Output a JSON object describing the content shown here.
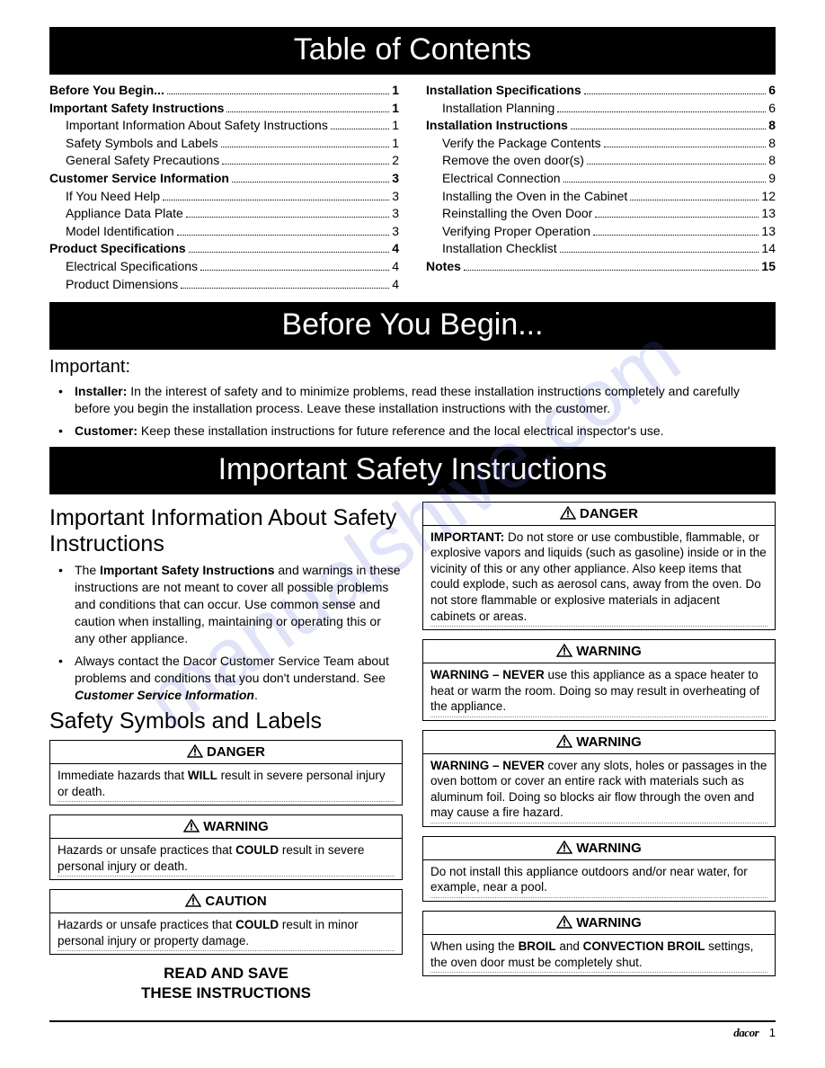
{
  "banners": {
    "toc": "Table of Contents",
    "before": "Before You Begin...",
    "safety": "Important Safety Instructions"
  },
  "toc_left": [
    {
      "label": "Before You Begin... ",
      "page": "1",
      "bold": true,
      "indent": 0
    },
    {
      "label": "Important Safety Instructions ",
      "page": "1",
      "bold": true,
      "indent": 0
    },
    {
      "label": "Important Information About Safety Instructions",
      "page": "1",
      "bold": false,
      "indent": 1
    },
    {
      "label": "Safety Symbols and Labels ",
      "page": "1",
      "bold": false,
      "indent": 1
    },
    {
      "label": "General Safety Precautions ",
      "page": "2",
      "bold": false,
      "indent": 1
    },
    {
      "label": "Customer Service Information ",
      "page": "3",
      "bold": true,
      "indent": 0
    },
    {
      "label": "If You Need Help",
      "page": "3",
      "bold": false,
      "indent": 1
    },
    {
      "label": "Appliance Data Plate ",
      "page": "3",
      "bold": false,
      "indent": 1
    },
    {
      "label": "Model Identification ",
      "page": "3",
      "bold": false,
      "indent": 1
    },
    {
      "label": "Product Specifications ",
      "page": "4",
      "bold": true,
      "indent": 0
    },
    {
      "label": "Electrical Specifications ",
      "page": "4",
      "bold": false,
      "indent": 1
    },
    {
      "label": "Product Dimensions ",
      "page": "4",
      "bold": false,
      "indent": 1
    }
  ],
  "toc_right": [
    {
      "label": "Installation Specifications ",
      "page": "6",
      "bold": true,
      "indent": 0
    },
    {
      "label": "Installation Planning ",
      "page": "6",
      "bold": false,
      "indent": 1
    },
    {
      "label": "Installation Instructions ",
      "page": "8",
      "bold": true,
      "indent": 0
    },
    {
      "label": "Verify the Package Contents",
      "page": "8",
      "bold": false,
      "indent": 1
    },
    {
      "label": "Remove the oven door(s) ",
      "page": "8",
      "bold": false,
      "indent": 1
    },
    {
      "label": "Electrical Connection ",
      "page": "9",
      "bold": false,
      "indent": 1
    },
    {
      "label": "Installing the Oven in the Cabinet",
      "page": "12",
      "bold": false,
      "indent": 1
    },
    {
      "label": "Reinstalling the Oven Door ",
      "page": "13",
      "bold": false,
      "indent": 1
    },
    {
      "label": "Verifying Proper Operation",
      "page": "13",
      "bold": false,
      "indent": 1
    },
    {
      "label": "Installation Checklist ",
      "page": "14",
      "bold": false,
      "indent": 1
    },
    {
      "label": "Notes",
      "page": "15",
      "bold": true,
      "indent": 0
    }
  ],
  "important_heading": "Important:",
  "important_items": [
    "<b>Installer:</b> In the interest of safety and to minimize problems, read these installation instructions completely and carefully before you begin the installation process. Leave these installation instructions with the customer.",
    "<b>Customer:</b> Keep these installation instructions for future reference and the local electrical inspector's use."
  ],
  "left_section": {
    "h_info": "Important Information About Safety Instructions",
    "bullets": [
      "The <b>Important Safety Instructions</b> and warnings in these instructions are not meant to cover all possible problems and conditions that can occur. Use common sense and caution when installing, maintaining or operating this or any other appliance.",
      "Always contact the Dacor Customer Service Team about problems and conditions that you don't understand. See <b><i>Customer Service Information</i></b>."
    ],
    "h_symbols": "Safety Symbols and Labels",
    "boxes": [
      {
        "level": "DANGER",
        "body": "Immediate hazards that <b>WILL</b> result in severe personal injury or death."
      },
      {
        "level": "WARNING",
        "body": "Hazards or unsafe practices that <b>COULD</b> result in severe personal injury or death."
      },
      {
        "level": "CAUTION",
        "body": "Hazards or unsafe practices that <b>COULD</b> result in minor personal injury or property damage."
      }
    ],
    "read_save": "READ AND SAVE\nTHESE INSTRUCTIONS"
  },
  "right_boxes": [
    {
      "level": "DANGER",
      "body": "<b>IMPORTANT:</b> Do not store or use combustible, flammable, or explosive vapors and liquids (such as gasoline) inside or in the vicinity of this or any other appliance. Also keep items that could explode, such as aerosol cans, away from the oven. Do not store flammable or explosive materials in adjacent cabinets or areas."
    },
    {
      "level": "WARNING",
      "body": "<b>WARNING – NEVER</b> use this appliance as a space heater to heat or warm the room. Doing so may result in overheating of the appliance."
    },
    {
      "level": "WARNING",
      "body": "<b>WARNING – NEVER</b> cover any slots, holes or passages in the oven bottom or cover an entire rack with materials such as aluminum foil. Doing so blocks air flow through the oven and may cause a fire hazard."
    },
    {
      "level": "WARNING",
      "body": "Do not install this appliance outdoors and/or near water, for example, near a pool."
    },
    {
      "level": "WARNING",
      "body": "When using the <b>BROIL</b> and <b>CONVECTION BROIL</b> settings, the oven door must be completely shut."
    }
  ],
  "footer": {
    "brand": "dacor",
    "page": "1"
  },
  "watermark": "manualshive.com",
  "icon_svg": "<svg width='18' height='15' viewBox='0 0 18 15'><polygon points='9,1 17,14 1,14' fill='none' stroke='#000' stroke-width='1.5'/><rect x='8.1' y='4.5' width='1.8' height='5' fill='#000'/><rect x='8.1' y='10.5' width='1.8' height='1.8' fill='#000'/></svg>"
}
